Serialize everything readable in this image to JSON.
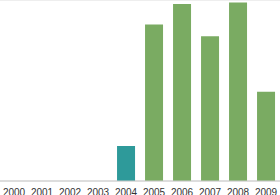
{
  "chart_data": {
    "type": "bar",
    "categories": [
      "2000",
      "2001",
      "2002",
      "2003",
      "2004",
      "2005",
      "2006",
      "2007",
      "2008",
      "2009"
    ],
    "values": [
      null,
      null,
      null,
      null,
      1.35,
      6.05,
      6.85,
      5.6,
      6.9,
      3.45
    ],
    "colors": [
      "#7aab62",
      "#7aab62",
      "#7aab62",
      "#7aab62",
      "#2e9a9a",
      "#7aab62",
      "#7aab62",
      "#7aab62",
      "#7aab62",
      "#7aab62"
    ],
    "ylim": [
      0,
      7
    ],
    "yticks": [
      0,
      1,
      2,
      3,
      4,
      5,
      6,
      7
    ],
    "grid": true,
    "tick_labels": "x"
  }
}
